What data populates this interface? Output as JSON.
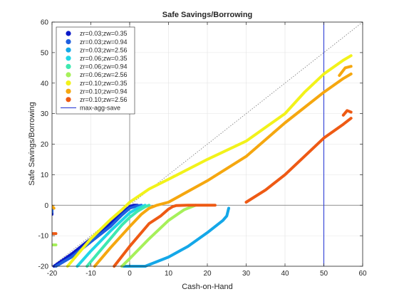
{
  "chart_data": {
    "type": "scatter",
    "title": "Safe Savings/Borrowing",
    "xlabel": "Cash-on-Hand",
    "ylabel": "Safe Savings/Borrowing",
    "xlim": [
      -20,
      60
    ],
    "ylim": [
      -20,
      60
    ],
    "xticks": [
      -20,
      -10,
      0,
      10,
      20,
      30,
      40,
      50,
      60
    ],
    "yticks": [
      -20,
      -10,
      0,
      10,
      20,
      30,
      40,
      50,
      60
    ],
    "grid": true,
    "legend_position": "top-left",
    "reference_lines": {
      "y_zero": true,
      "x_zero": true,
      "diagonal_dotted": true
    },
    "vertical_line": {
      "label": "max-agg-save",
      "x": 50,
      "color": "#2f3fd6"
    },
    "series": [
      {
        "name": "zr=0.03;zw=0.35",
        "color": "#0a19c8",
        "segments": [
          {
            "points": [
              [
                -19.5,
                -20
              ],
              [
                -15,
                -16
              ],
              [
                -10,
                -11
              ],
              [
                -5,
                -6
              ],
              [
                -2,
                -2.5
              ],
              [
                0,
                -0.5
              ],
              [
                1,
                0
              ],
              [
                2,
                0
              ]
            ]
          },
          {
            "points": [
              [
                -20,
                -2
              ],
              [
                -20,
                -3
              ]
            ]
          }
        ]
      },
      {
        "name": "zr=0.03;zw=0.94",
        "color": "#1e5fe0",
        "segments": [
          {
            "points": [
              [
                -19,
                -20
              ],
              [
                -15,
                -17
              ],
              [
                -10,
                -12
              ],
              [
                -5,
                -7
              ],
              [
                -2,
                -3.2
              ],
              [
                0,
                -1
              ],
              [
                2,
                -0.2
              ],
              [
                3,
                0
              ]
            ]
          },
          {
            "points": [
              [
                -20,
                -1
              ],
              [
                -20,
                -2.2
              ]
            ]
          }
        ]
      },
      {
        "name": "zr=0.03;zw=2.56",
        "color": "#14a7e8",
        "segments": [
          {
            "points": [
              [
                4,
                -20
              ],
              [
                10,
                -17
              ],
              [
                15,
                -13.5
              ],
              [
                20,
                -9
              ],
              [
                24,
                -5
              ],
              [
                25,
                -3.5
              ],
              [
                25.5,
                -1
              ]
            ]
          },
          {
            "points": [
              [
                -2,
                -20
              ],
              [
                4,
                -20
              ]
            ]
          }
        ]
      },
      {
        "name": "zr=0.06;zw=0.35",
        "color": "#20d6e6",
        "segments": [
          {
            "points": [
              [
                -13.5,
                -20
              ],
              [
                -10,
                -15
              ],
              [
                -5,
                -8.5
              ],
              [
                0,
                -2.5
              ],
              [
                2,
                -1
              ],
              [
                4,
                0
              ]
            ]
          }
        ]
      },
      {
        "name": "zr=0.06;zw=0.94",
        "color": "#3ee8b0",
        "segments": [
          {
            "points": [
              [
                -11,
                -20
              ],
              [
                -8,
                -15.5
              ],
              [
                -5,
                -11
              ],
              [
                -2,
                -6.5
              ],
              [
                0,
                -4
              ],
              [
                2,
                -2
              ],
              [
                4,
                -0.5
              ],
              [
                5,
                0
              ]
            ]
          }
        ]
      },
      {
        "name": "zr=0.06;zw=2.56",
        "color": "#a6f05a",
        "segments": [
          {
            "points": [
              [
                -2,
                -20
              ],
              [
                0,
                -17.5
              ],
              [
                5,
                -11
              ],
              [
                10,
                -5
              ],
              [
                14,
                -1.5
              ],
              [
                16,
                -0.5
              ],
              [
                17,
                0
              ]
            ]
          },
          {
            "points": [
              [
                -20,
                -13
              ],
              [
                -19,
                -13
              ]
            ]
          }
        ]
      },
      {
        "name": "zr=0.10;zw=0.35",
        "color": "#f2f21a",
        "segments": [
          {
            "points": [
              [
                -16,
                -20
              ],
              [
                -10,
                -11
              ],
              [
                -5,
                -4.8
              ],
              [
                -2,
                -1.5
              ],
              [
                0,
                1
              ],
              [
                5,
                5.3
              ],
              [
                10,
                8.5
              ],
              [
                20,
                15
              ],
              [
                30,
                21
              ],
              [
                40,
                30
              ],
              [
                45,
                37
              ],
              [
                50,
                43
              ],
              [
                55,
                47.5
              ],
              [
                57,
                49
              ]
            ]
          }
        ]
      },
      {
        "name": "zr=0.10;zw=0.94",
        "color": "#f5a70f",
        "segments": [
          {
            "points": [
              [
                -9,
                -20
              ],
              [
                -5,
                -14
              ],
              [
                0,
                -7
              ],
              [
                3,
                -3
              ],
              [
                5,
                -1
              ],
              [
                7,
                0
              ],
              [
                10,
                1
              ],
              [
                20,
                8
              ],
              [
                30,
                16
              ],
              [
                40,
                27
              ],
              [
                45,
                32
              ],
              [
                50,
                37
              ],
              [
                55,
                41.5
              ],
              [
                57,
                43
              ]
            ]
          },
          {
            "points": [
              [
                -20,
                -0.3
              ],
              [
                -19.5,
                -1
              ]
            ]
          },
          {
            "points": [
              [
                54,
                42.5
              ],
              [
                55.5,
                45
              ],
              [
                57,
                45.5
              ]
            ]
          }
        ]
      },
      {
        "name": "zr=0.10;zw=2.56",
        "color": "#ee5a14",
        "segments": [
          {
            "points": [
              [
                -4,
                -20
              ],
              [
                0,
                -13.5
              ],
              [
                5,
                -6
              ],
              [
                8,
                -3.5
              ],
              [
                10,
                -1.3
              ],
              [
                11,
                -0.5
              ],
              [
                12,
                -0.1
              ],
              [
                15,
                0
              ],
              [
                20,
                0
              ],
              [
                22,
                0
              ]
            ]
          },
          {
            "points": [
              [
                30,
                1
              ],
              [
                35,
                5
              ],
              [
                40,
                10
              ],
              [
                45,
                16
              ],
              [
                50,
                22
              ],
              [
                55,
                26.5
              ],
              [
                57,
                28.5
              ]
            ]
          },
          {
            "points": [
              [
                -20,
                -9.3
              ],
              [
                -19,
                -9.3
              ]
            ]
          },
          {
            "points": [
              [
                55,
                29.5
              ],
              [
                56,
                31
              ],
              [
                57,
                30.5
              ]
            ]
          }
        ]
      }
    ]
  }
}
